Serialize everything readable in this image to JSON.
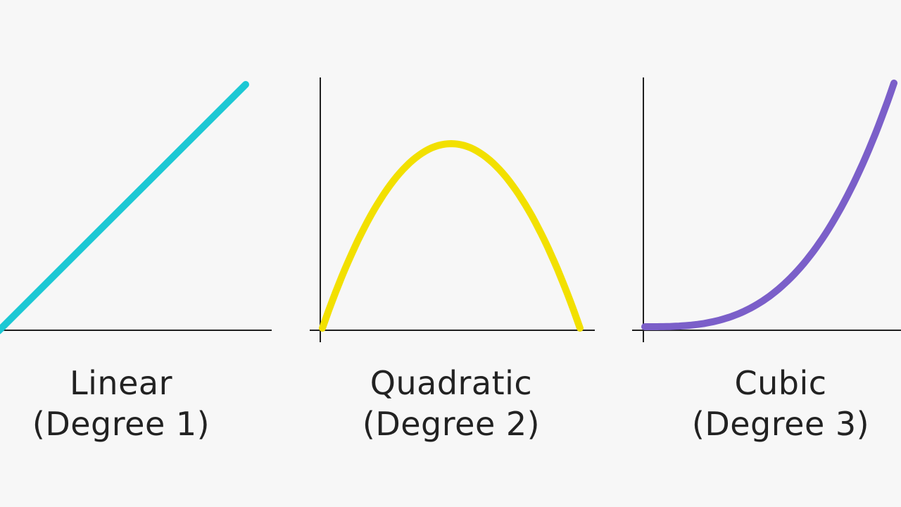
{
  "panels": [
    {
      "name": "Linear",
      "subtitle": "(Degree 1)",
      "degree": 1,
      "color": "#1cc8d4",
      "curve_shape": "rising straight line",
      "axes_shown": "x-axis only"
    },
    {
      "name": "Quadratic",
      "subtitle": "(Degree 2)",
      "degree": 2,
      "color": "#f2e000",
      "curve_shape": "downward-opening parabola",
      "axes_shown": "x-axis and y-axis"
    },
    {
      "name": "Cubic",
      "subtitle": "(Degree 3)",
      "degree": 3,
      "color": "#7b5fc9",
      "curve_shape": "increasing cubic curve",
      "axes_shown": "x-axis and y-axis"
    }
  ],
  "axis_color": "#1f1f1f",
  "background": "#f7f7f7"
}
